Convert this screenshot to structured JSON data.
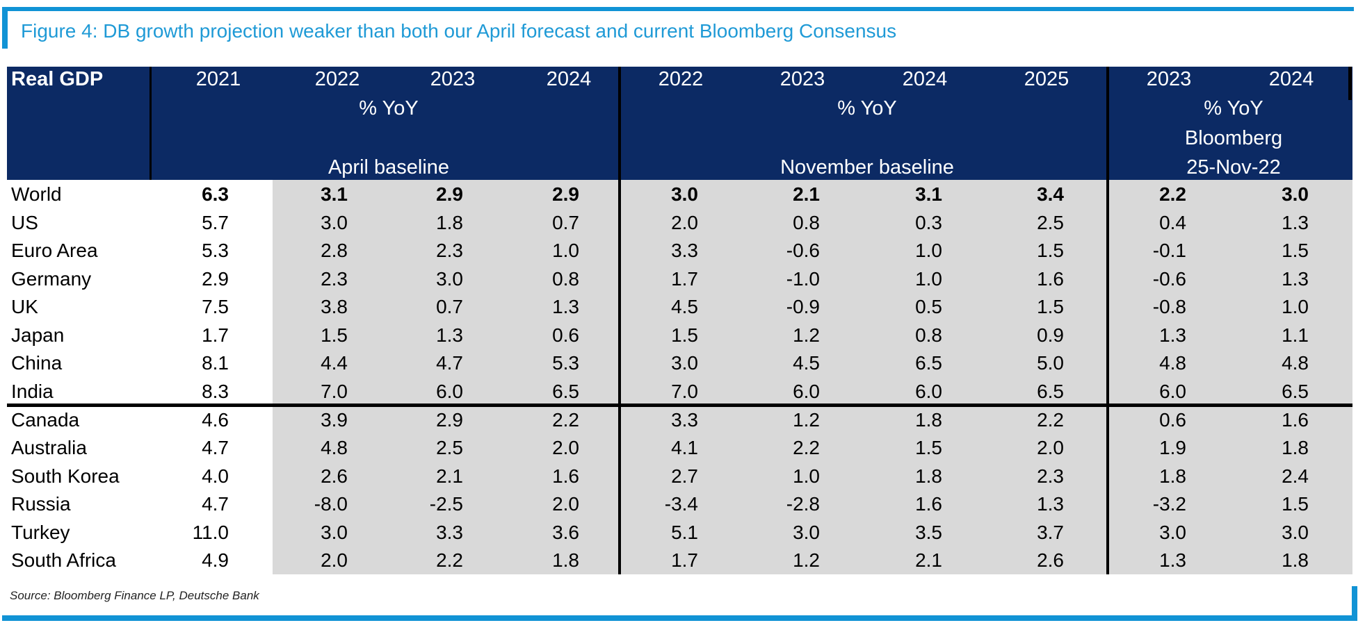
{
  "title": "Figure 4: DB growth projection weaker than both our April forecast and current Bloomberg Consensus",
  "source": "Source: Bloomberg Finance LP, Deutsche Bank",
  "colors": {
    "navy": "#0c2a64",
    "body_gray": "#d9d9d9",
    "accent_blue": "#1193d5",
    "title_blue": "#1f9ad6",
    "line_black": "#000000",
    "source_gray": "#222222"
  },
  "chart_data": {
    "type": "table",
    "header": {
      "corner": "Real GDP",
      "year_2021": "2021",
      "april_years": [
        "2022",
        "2023",
        "2024"
      ],
      "april_unit": "% YoY",
      "april_label": "April baseline",
      "nov_years": [
        "2022",
        "2023",
        "2024",
        "2025"
      ],
      "nov_unit": "% YoY",
      "nov_label": "November baseline",
      "bbg_years": [
        "2023",
        "2024"
      ],
      "bbg_unit": "% YoY",
      "bbg_name": "Bloomberg",
      "bbg_date": "25-Nov-22"
    },
    "rows": [
      {
        "name": "World",
        "bold": true,
        "v2021": "6.3",
        "april": [
          "3.1",
          "2.9",
          "2.9"
        ],
        "november": [
          "3.0",
          "2.1",
          "3.1",
          "3.4"
        ],
        "bloomberg": [
          "2.2",
          "3.0"
        ]
      },
      {
        "name": "US",
        "bold": false,
        "v2021": "5.7",
        "april": [
          "3.0",
          "1.8",
          "0.7"
        ],
        "november": [
          "2.0",
          "0.8",
          "0.3",
          "2.5"
        ],
        "bloomberg": [
          "0.4",
          "1.3"
        ]
      },
      {
        "name": "Euro Area",
        "bold": false,
        "v2021": "5.3",
        "april": [
          "2.8",
          "2.3",
          "1.0"
        ],
        "november": [
          "3.3",
          "-0.6",
          "1.0",
          "1.5"
        ],
        "bloomberg": [
          "-0.1",
          "1.5"
        ]
      },
      {
        "name": "Germany",
        "bold": false,
        "v2021": "2.9",
        "april": [
          "2.3",
          "3.0",
          "0.8"
        ],
        "november": [
          "1.7",
          "-1.0",
          "1.0",
          "1.6"
        ],
        "bloomberg": [
          "-0.6",
          "1.3"
        ]
      },
      {
        "name": "UK",
        "bold": false,
        "v2021": "7.5",
        "april": [
          "3.8",
          "0.7",
          "1.3"
        ],
        "november": [
          "4.5",
          "-0.9",
          "0.5",
          "1.5"
        ],
        "bloomberg": [
          "-0.8",
          "1.0"
        ]
      },
      {
        "name": "Japan",
        "bold": false,
        "v2021": "1.7",
        "april": [
          "1.5",
          "1.3",
          "0.6"
        ],
        "november": [
          "1.5",
          "1.2",
          "0.8",
          "0.9"
        ],
        "bloomberg": [
          "1.3",
          "1.1"
        ]
      },
      {
        "name": "China",
        "bold": false,
        "v2021": "8.1",
        "april": [
          "4.4",
          "4.7",
          "5.3"
        ],
        "november": [
          "3.0",
          "4.5",
          "6.5",
          "5.0"
        ],
        "bloomberg": [
          "4.8",
          "4.8"
        ]
      },
      {
        "name": "India",
        "bold": false,
        "v2021": "8.3",
        "april": [
          "7.0",
          "6.0",
          "6.5"
        ],
        "november": [
          "7.0",
          "6.0",
          "6.0",
          "6.5"
        ],
        "bloomberg": [
          "6.0",
          "6.5"
        ]
      },
      {
        "name": "Canada",
        "bold": false,
        "v2021": "4.6",
        "april": [
          "3.9",
          "2.9",
          "2.2"
        ],
        "november": [
          "3.3",
          "1.2",
          "1.8",
          "2.2"
        ],
        "bloomberg": [
          "0.6",
          "1.6"
        ]
      },
      {
        "name": "Australia",
        "bold": false,
        "v2021": "4.7",
        "april": [
          "4.8",
          "2.5",
          "2.0"
        ],
        "november": [
          "4.1",
          "2.2",
          "1.5",
          "2.0"
        ],
        "bloomberg": [
          "1.9",
          "1.8"
        ]
      },
      {
        "name": "South Korea",
        "bold": false,
        "v2021": "4.0",
        "april": [
          "2.6",
          "2.1",
          "1.6"
        ],
        "november": [
          "2.7",
          "1.0",
          "1.8",
          "2.3"
        ],
        "bloomberg": [
          "1.8",
          "2.4"
        ]
      },
      {
        "name": "Russia",
        "bold": false,
        "v2021": "4.7",
        "april": [
          "-8.0",
          "-2.5",
          "2.0"
        ],
        "november": [
          "-3.4",
          "-2.8",
          "1.6",
          "1.3"
        ],
        "bloomberg": [
          "-3.2",
          "1.5"
        ]
      },
      {
        "name": "Turkey",
        "bold": false,
        "v2021": "11.0",
        "april": [
          "3.0",
          "3.3",
          "3.6"
        ],
        "november": [
          "5.1",
          "3.0",
          "3.5",
          "3.7"
        ],
        "bloomberg": [
          "3.0",
          "3.0"
        ]
      },
      {
        "name": "South Africa",
        "bold": false,
        "v2021": "4.9",
        "april": [
          "2.0",
          "2.2",
          "1.8"
        ],
        "november": [
          "1.7",
          "1.2",
          "2.1",
          "2.6"
        ],
        "bloomberg": [
          "1.3",
          "1.8"
        ]
      }
    ],
    "group_separator_after": "India"
  }
}
